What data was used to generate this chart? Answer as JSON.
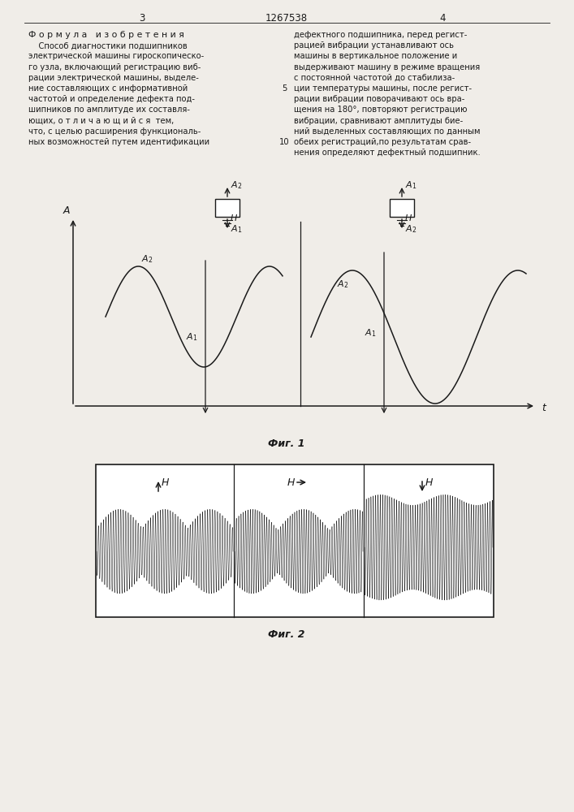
{
  "page_width": 7.07,
  "page_height": 10.0,
  "bg_color": "#f0ede8",
  "header": {
    "page_left": "3",
    "title_center": "1267538",
    "page_right": "4"
  },
  "left_column_text": [
    "Ф о р м у л а   и з о б р е т е н и я",
    "    Способ диагностики подшипников",
    "электрической машины гироскопическо-",
    "го узла, включающий регистрацию виб-",
    "рации электрической машины, выделе-",
    "ние составляющих с информативной",
    "частотой и определение дефекта под-",
    "шипников по амплитуде их составля-",
    "ющих, о т л и ч а ю щ и й с я  тем,",
    "что, с целью расширения функциональ-",
    "ных возможностей путем идентификации"
  ],
  "right_column_text": [
    "дефектного подшипника, перед регист-",
    "рацией вибрации устанавливают ось",
    "машины в вертикальное положение и",
    "выдерживают машину в режиме вращения",
    "с постоянной частотой до стабилиза-",
    "ции температуры машины, после регист-",
    "рации вибрации поворачивают ось вра-",
    "щения на 180°, повторяют регистрацию",
    "вибрации, сравнивают амплитуды бие-",
    "ний выделенных составляющих по данным",
    "обеих регистраций,по результатам срав-",
    "нения определяют дефектный подшипник."
  ],
  "line_numbers": [
    5,
    10
  ],
  "fig1_caption": "Фиг. 1",
  "fig2_caption": "Фиг. 2"
}
